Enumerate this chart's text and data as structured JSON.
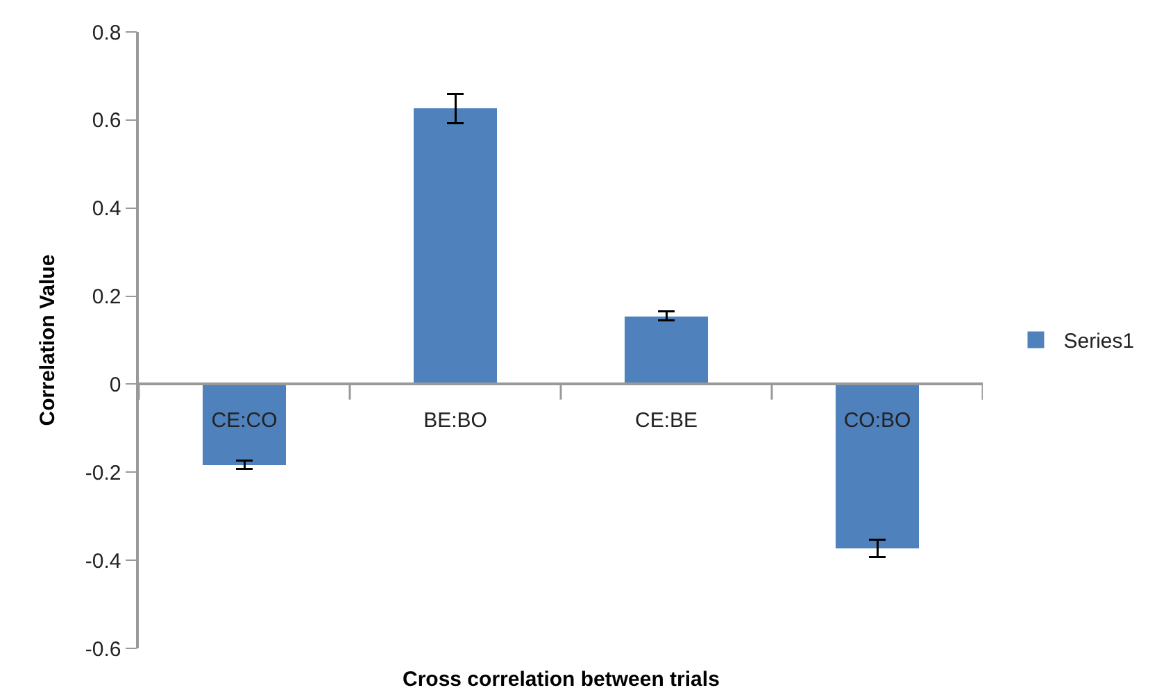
{
  "chart_data": {
    "type": "bar",
    "xlabel": "Cross correlation between trials",
    "ylabel": "Correlation Value",
    "categories": [
      "CE:CO",
      "BE:BO",
      "CE:BE",
      "CO:BO"
    ],
    "series": [
      {
        "name": "Series1",
        "color": "#4f81bd",
        "values": [
          -0.183,
          0.626,
          0.155,
          -0.373
        ],
        "errors": [
          0.01,
          0.033,
          0.01,
          0.02
        ]
      }
    ],
    "ylim": [
      -0.6,
      0.8
    ],
    "yticks": [
      -0.6,
      -0.4,
      -0.2,
      0,
      0.2,
      0.4,
      0.6,
      0.8
    ],
    "grid": false,
    "legend": "right"
  }
}
